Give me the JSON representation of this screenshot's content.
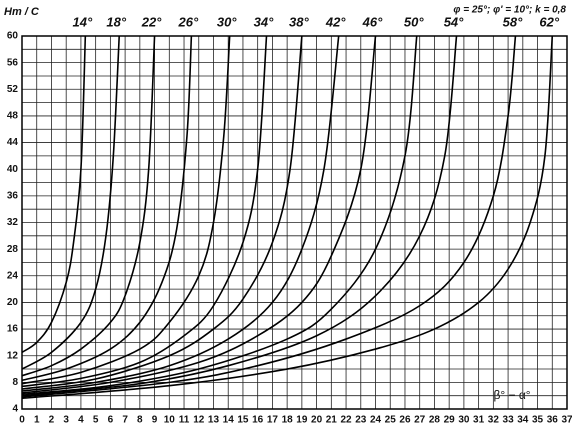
{
  "chart_data": {
    "type": "line",
    "y_label": "Hт / C",
    "x_label": "β° − α°",
    "annotation": "φ = 25°; φ' = 10°; k = 0,8",
    "xlim": [
      0,
      37
    ],
    "ylim": [
      4,
      60
    ],
    "xticks": [
      0,
      1,
      2,
      3,
      4,
      5,
      6,
      7,
      8,
      9,
      10,
      11,
      12,
      13,
      14,
      15,
      16,
      17,
      18,
      19,
      20,
      21,
      22,
      23,
      24,
      25,
      26,
      27,
      28,
      29,
      30,
      31,
      32,
      33,
      34,
      35,
      36,
      37
    ],
    "yticks": [
      4,
      8,
      12,
      16,
      20,
      24,
      28,
      32,
      36,
      40,
      44,
      48,
      52,
      56,
      60
    ],
    "yminorticks": [
      6,
      10,
      14,
      18,
      22,
      26,
      30,
      34,
      38,
      42,
      46,
      50,
      54,
      58
    ],
    "grid": true,
    "color": "#000000",
    "series": [
      {
        "name": "14°",
        "x": [
          0,
          1,
          2,
          3,
          3.5,
          4,
          4.3
        ],
        "values": [
          12.5,
          14,
          17,
          23,
          29,
          40,
          60
        ]
      },
      {
        "name": "18°",
        "x": [
          0,
          2,
          4,
          5,
          5.7,
          6.2,
          6.6
        ],
        "values": [
          10,
          12.5,
          17,
          22,
          30,
          42,
          60
        ]
      },
      {
        "name": "22°",
        "x": [
          0,
          2,
          4,
          6,
          7,
          8,
          8.6,
          9
        ],
        "values": [
          9,
          10.5,
          13,
          17,
          21,
          29,
          40,
          60
        ]
      },
      {
        "name": "26°",
        "x": [
          0,
          3,
          6,
          8,
          9.5,
          10.5,
          11.2,
          11.5
        ],
        "values": [
          8.3,
          10,
          13,
          17,
          23,
          31,
          45,
          60
        ]
      },
      {
        "name": "30°",
        "x": [
          0,
          4,
          8,
          10,
          12,
          13,
          13.7,
          14.1
        ],
        "values": [
          7.8,
          9.5,
          13,
          17,
          24,
          32,
          45,
          60
        ]
      },
      {
        "name": "34°",
        "x": [
          0,
          4,
          8,
          11,
          13,
          15,
          16,
          16.6
        ],
        "values": [
          7.4,
          8.6,
          11,
          15,
          19.5,
          29,
          40,
          60
        ]
      },
      {
        "name": "38°",
        "x": [
          0,
          5,
          10,
          13,
          15,
          17,
          18.2,
          19
        ],
        "values": [
          7,
          8.5,
          12,
          16,
          20.5,
          29,
          40,
          60
        ]
      },
      {
        "name": "42°",
        "x": [
          0,
          5,
          10,
          14,
          17,
          19,
          20.5,
          21.5
        ],
        "values": [
          6.7,
          8,
          10.5,
          14.5,
          20,
          28,
          40,
          60
        ]
      },
      {
        "name": "46°",
        "x": [
          0,
          6,
          12,
          16,
          19,
          21,
          23,
          24
        ],
        "values": [
          6.4,
          8,
          11,
          15,
          20,
          27,
          40,
          60
        ]
      },
      {
        "name": "50°",
        "x": [
          0,
          6,
          12,
          18,
          21,
          24,
          26,
          26.8
        ],
        "values": [
          6.2,
          7.5,
          10,
          14.5,
          19,
          28,
          42,
          60
        ]
      },
      {
        "name": "54°",
        "x": [
          0,
          8,
          14,
          20,
          24,
          27,
          28.7,
          29.5
        ],
        "values": [
          6,
          7.8,
          10.5,
          15,
          21,
          30,
          42,
          60
        ]
      },
      {
        "name": "58°",
        "x": [
          0,
          10,
          16,
          22,
          27,
          30,
          32,
          33,
          33.5
        ],
        "values": [
          5.8,
          8,
          10.5,
          14.5,
          19.5,
          26,
          36,
          48,
          60
        ]
      },
      {
        "name": "62°",
        "x": [
          0,
          10,
          18,
          24,
          28,
          31,
          33,
          34.5,
          35.5,
          36
        ],
        "values": [
          5.6,
          7.5,
          10,
          13,
          16,
          20,
          25,
          32,
          42,
          60
        ]
      }
    ]
  }
}
